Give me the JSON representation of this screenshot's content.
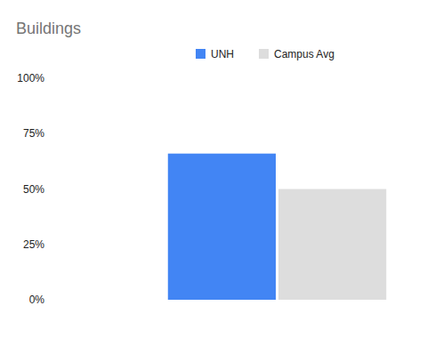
{
  "chart_data": {
    "type": "bar",
    "title": "Buildings",
    "categories": [
      null
    ],
    "series": [
      {
        "name": "UNH",
        "color": "#4285f4",
        "values": [
          66
        ]
      },
      {
        "name": "Campus Avg",
        "color": "#dddddd",
        "values": [
          50
        ]
      }
    ],
    "ylim": [
      0,
      100
    ],
    "yticks": [
      {
        "value": 0,
        "label": "0%"
      },
      {
        "value": 25,
        "label": "25%"
      },
      {
        "value": 50,
        "label": "50%"
      },
      {
        "value": 75,
        "label": "75%"
      },
      {
        "value": 100,
        "label": "100%"
      }
    ],
    "grid": false,
    "legend": "top",
    "tick_labels": "y"
  }
}
